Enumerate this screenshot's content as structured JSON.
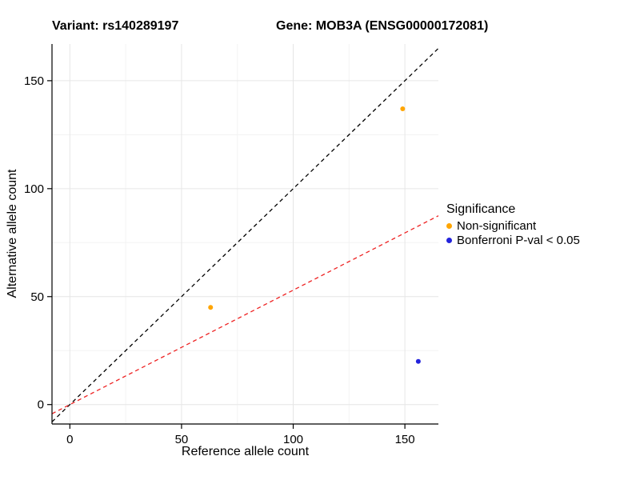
{
  "chart_data": {
    "type": "scatter",
    "title_left": "Variant: rs140289197",
    "title_right": "Gene: MOB3A (ENSG00000172081)",
    "xlabel": "Reference allele count",
    "ylabel": "Alternative allele count",
    "xlim": [
      -8,
      165
    ],
    "ylim": [
      -9,
      167
    ],
    "xticks": [
      0,
      50,
      100,
      150
    ],
    "yticks": [
      0,
      50,
      100,
      150
    ],
    "minor_xticks": [
      25,
      75,
      125
    ],
    "minor_yticks": [
      25,
      75,
      125
    ],
    "grid": "white panel with light grey major and minor gridlines, black left/bottom axis lines",
    "point_radius": 3,
    "points": [
      {
        "x": 149,
        "y": 137,
        "series": "Non-significant",
        "color": "#FFA500"
      },
      {
        "x": 63,
        "y": 45,
        "series": "Non-significant",
        "color": "#FFA500"
      },
      {
        "x": 156,
        "y": 20,
        "series": "Bonferroni P-val < 0.05",
        "color": "#2323DC"
      }
    ],
    "lines": [
      {
        "name": "identity-line",
        "slope": 1,
        "intercept": 0,
        "color": "#000000",
        "style": "dashed"
      },
      {
        "name": "expected-ratio-line",
        "slope": 0.53,
        "intercept": 0,
        "color": "#EE2222",
        "style": "dashed"
      }
    ],
    "legend": {
      "title": "Significance",
      "position": "right",
      "items": [
        {
          "label": "Non-significant",
          "color": "#FFA500"
        },
        {
          "label": "Bonferroni P-val < 0.05",
          "color": "#2323DC"
        }
      ]
    }
  }
}
